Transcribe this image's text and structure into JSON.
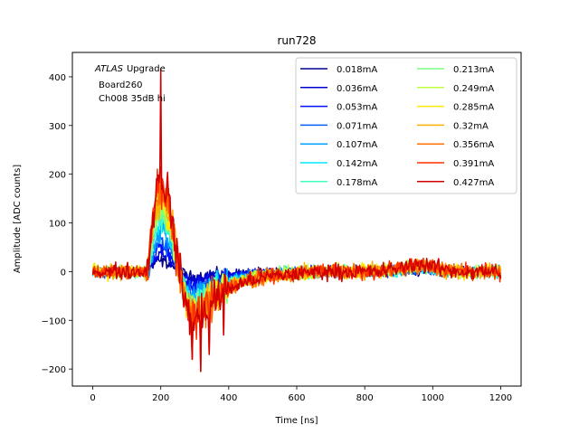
{
  "chart_data": {
    "type": "line",
    "title": "run728",
    "xlabel": "Time [ns]",
    "ylabel": "Amplitude [ADC counts]",
    "xlim": [
      -60,
      1260
    ],
    "ylim": [
      -235,
      450
    ],
    "xticks": [
      0,
      200,
      400,
      600,
      800,
      1000,
      1200
    ],
    "yticks": [
      -200,
      -100,
      0,
      100,
      200,
      300,
      400
    ],
    "xtick_labels": [
      "0",
      "200",
      "400",
      "600",
      "800",
      "1000",
      "1200"
    ],
    "ytick_labels": [
      "−200",
      "−100",
      "0",
      "100",
      "200",
      "300",
      "400"
    ],
    "grid": false,
    "legend_position": "top-right",
    "legend_columns": 2,
    "annotation": {
      "italic": "ATLAS",
      "line1_rest": "Upgrade",
      "line2": "Board260",
      "line3": "Ch008 35dB hi"
    },
    "series": [
      {
        "name": "0.018mA",
        "color": "#00008f",
        "pulse_max": 22,
        "undershoot_min": -12,
        "spike_max": 22
      },
      {
        "name": "0.036mA",
        "color": "#0000d0",
        "pulse_max": 35,
        "undershoot_min": -22,
        "spike_max": 40
      },
      {
        "name": "0.053mA",
        "color": "#0010ff",
        "pulse_max": 48,
        "undershoot_min": -32,
        "spike_max": 55
      },
      {
        "name": "0.071mA",
        "color": "#0060ff",
        "pulse_max": 60,
        "undershoot_min": -42,
        "spike_max": 70
      },
      {
        "name": "0.107mA",
        "color": "#00a0ff",
        "pulse_max": 80,
        "undershoot_min": -55,
        "spike_max": 95
      },
      {
        "name": "0.142mA",
        "color": "#00e8ff",
        "pulse_max": 95,
        "undershoot_min": -65,
        "spike_max": 115
      },
      {
        "name": "0.178mA",
        "color": "#40ffc0",
        "pulse_max": 110,
        "undershoot_min": -72,
        "spike_max": 130
      },
      {
        "name": "0.213mA",
        "color": "#80ff80",
        "pulse_max": 122,
        "undershoot_min": -78,
        "spike_max": 145
      },
      {
        "name": "0.249mA",
        "color": "#c0ff40",
        "pulse_max": 135,
        "undershoot_min": -84,
        "spike_max": 160
      },
      {
        "name": "0.285mA",
        "color": "#ffe800",
        "pulse_max": 148,
        "undershoot_min": -90,
        "spike_max": 175
      },
      {
        "name": "0.32mA",
        "color": "#ffb000",
        "pulse_max": 158,
        "undershoot_min": -94,
        "spike_max": 190
      },
      {
        "name": "0.356mA",
        "color": "#ff7000",
        "pulse_max": 168,
        "undershoot_min": -98,
        "spike_max": 205
      },
      {
        "name": "0.391mA",
        "color": "#ff3000",
        "pulse_max": 177,
        "undershoot_min": -102,
        "spike_max": 215
      },
      {
        "name": "0.427mA",
        "color": "#d00000",
        "pulse_max": 185,
        "undershoot_min": -105,
        "spike_max": 415
      }
    ]
  }
}
